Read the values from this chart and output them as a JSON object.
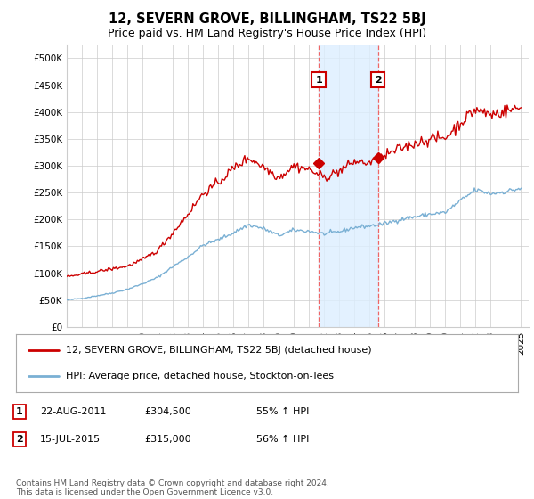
{
  "title": "12, SEVERN GROVE, BILLINGHAM, TS22 5BJ",
  "subtitle": "Price paid vs. HM Land Registry's House Price Index (HPI)",
  "xlim_start": 1995.0,
  "xlim_end": 2025.5,
  "ylim": [
    0,
    525000
  ],
  "yticks": [
    0,
    50000,
    100000,
    150000,
    200000,
    250000,
    300000,
    350000,
    400000,
    450000,
    500000
  ],
  "ytick_labels": [
    "£0",
    "£50K",
    "£100K",
    "£150K",
    "£200K",
    "£250K",
    "£300K",
    "£350K",
    "£400K",
    "£450K",
    "£500K"
  ],
  "sale1_date": 2011.64,
  "sale1_price": 304500,
  "sale2_date": 2015.54,
  "sale2_price": 315000,
  "red_line_color": "#cc0000",
  "blue_line_color": "#7ab0d4",
  "shade_color": "#ddeeff",
  "vline_color": "#ee6666",
  "background_color": "#ffffff",
  "grid_color": "#cccccc",
  "legend_label_red": "12, SEVERN GROVE, BILLINGHAM, TS22 5BJ (detached house)",
  "legend_label_blue": "HPI: Average price, detached house, Stockton-on-Tees",
  "footnote": "Contains HM Land Registry data © Crown copyright and database right 2024.\nThis data is licensed under the Open Government Licence v3.0.",
  "title_fontsize": 10.5,
  "subtitle_fontsize": 9,
  "tick_fontsize": 7.5,
  "legend_fontsize": 8,
  "annot_fontsize": 8,
  "footnote_fontsize": 6.5,
  "hpi_anchors": {
    "1995": 50000,
    "1996": 53000,
    "1997": 58000,
    "1998": 63000,
    "1999": 70000,
    "2000": 80000,
    "2001": 92000,
    "2002": 112000,
    "2003": 130000,
    "2004": 152000,
    "2005": 162000,
    "2006": 175000,
    "2007": 190000,
    "2008": 183000,
    "2009": 170000,
    "2010": 180000,
    "2011": 178000,
    "2012": 173000,
    "2013": 177000,
    "2014": 185000,
    "2015": 188000,
    "2016": 192000,
    "2017": 200000,
    "2018": 205000,
    "2019": 210000,
    "2020": 213000,
    "2021": 235000,
    "2022": 255000,
    "2023": 248000,
    "2024": 252000,
    "2025": 258000
  },
  "red_anchors": {
    "1995": 93000,
    "1996": 98000,
    "1997": 103000,
    "1998": 108000,
    "1999": 113000,
    "2000": 125000,
    "2001": 142000,
    "2002": 175000,
    "2003": 210000,
    "2004": 248000,
    "2005": 268000,
    "2006": 295000,
    "2007": 315000,
    "2008": 298000,
    "2009": 278000,
    "2010": 300000,
    "2011": 293000,
    "2012": 278000,
    "2013": 290000,
    "2014": 308000,
    "2015": 305000,
    "2016": 318000,
    "2017": 332000,
    "2018": 342000,
    "2019": 350000,
    "2020": 352000,
    "2021": 380000,
    "2022": 405000,
    "2023": 395000,
    "2024": 402000,
    "2025": 408000
  }
}
